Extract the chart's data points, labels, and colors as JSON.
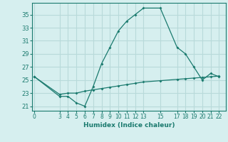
{
  "line1_x": [
    0,
    3,
    4,
    5,
    6,
    7,
    8,
    9,
    10,
    11,
    12,
    13,
    15,
    17,
    18,
    19,
    20,
    21,
    22
  ],
  "line1_y": [
    25.5,
    22.5,
    22.5,
    21.5,
    21.0,
    24.0,
    27.5,
    30.0,
    32.5,
    34.0,
    35.0,
    36.0,
    36.0,
    30.0,
    29.0,
    27.0,
    25.0,
    26.0,
    25.5
  ],
  "line2_x": [
    0,
    3,
    4,
    5,
    6,
    7,
    8,
    9,
    10,
    11,
    12,
    13,
    15,
    17,
    18,
    19,
    20,
    21,
    22
  ],
  "line2_y": [
    25.5,
    22.8,
    23.0,
    23.0,
    23.3,
    23.5,
    23.7,
    23.9,
    24.1,
    24.3,
    24.5,
    24.7,
    24.9,
    25.1,
    25.2,
    25.3,
    25.4,
    25.5,
    25.6
  ],
  "line_color": "#1a7a6e",
  "bg_color": "#d6efef",
  "grid_color": "#b8dada",
  "xlabel": "Humidex (Indice chaleur)",
  "xticks": [
    0,
    3,
    4,
    5,
    6,
    7,
    8,
    9,
    10,
    11,
    12,
    13,
    15,
    17,
    18,
    19,
    20,
    21,
    22
  ],
  "yticks": [
    21,
    23,
    25,
    27,
    29,
    31,
    33,
    35
  ],
  "xlim": [
    -0.3,
    22.8
  ],
  "ylim": [
    20.3,
    36.8
  ]
}
